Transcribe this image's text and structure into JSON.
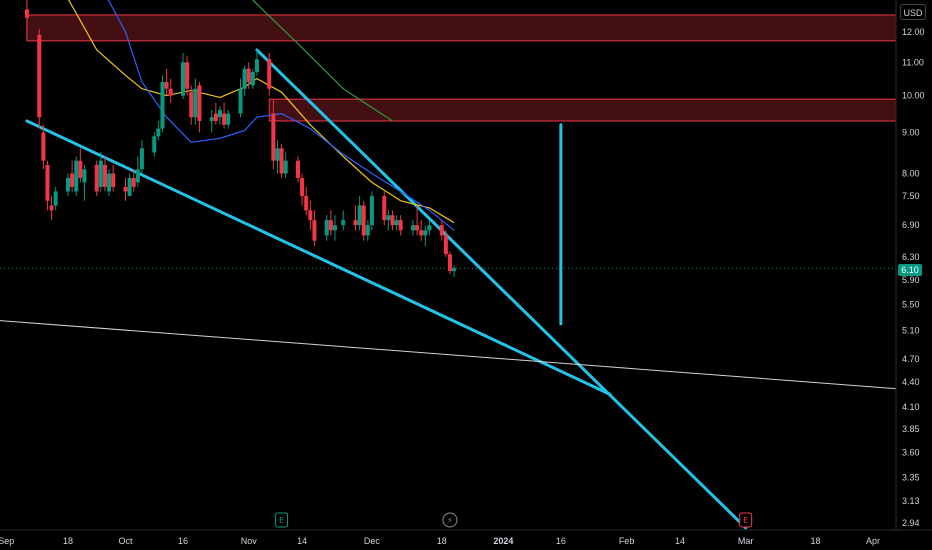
{
  "chart_data": {
    "type": "candlestick",
    "price_scale": {
      "currency": "USD",
      "ticks": [
        "12.00",
        "11.00",
        "10.00",
        "9.00",
        "8.00",
        "7.50",
        "6.90",
        "6.30",
        "5.90",
        "5.50",
        "5.10",
        "4.70",
        "4.40",
        "4.10",
        "3.85",
        "3.60",
        "3.35",
        "3.13",
        "2.94"
      ],
      "scale": "log",
      "last_price": "6.10"
    },
    "time_scale": {
      "labels": [
        "Sep",
        "18",
        "Oct",
        "16",
        "Nov",
        "14",
        "Dec",
        "18",
        "2024",
        "16",
        "Feb",
        "14",
        "Mar",
        "18",
        "Apr"
      ],
      "bold_labels": [
        "2024"
      ]
    },
    "candles": [
      {
        "d": "Sep 8",
        "o": 12.8,
        "h": 13.2,
        "l": 11.9,
        "c": 12.5
      },
      {
        "d": "Sep 11",
        "o": 11.9,
        "h": 12.1,
        "l": 9.1,
        "c": 9.4
      },
      {
        "d": "Sep 12",
        "o": 9.0,
        "h": 9.2,
        "l": 8.1,
        "c": 8.3
      },
      {
        "d": "Sep 13",
        "o": 8.2,
        "h": 8.3,
        "l": 7.2,
        "c": 7.4
      },
      {
        "d": "Sep 14",
        "o": 7.3,
        "h": 7.5,
        "l": 7.0,
        "c": 7.2
      },
      {
        "d": "Sep 15",
        "o": 7.3,
        "h": 7.7,
        "l": 7.2,
        "c": 7.6
      },
      {
        "d": "Sep 18",
        "o": 7.6,
        "h": 8.0,
        "l": 7.5,
        "c": 7.9
      },
      {
        "d": "Sep 19",
        "o": 8.0,
        "h": 8.3,
        "l": 7.6,
        "c": 7.7
      },
      {
        "d": "Sep 20",
        "o": 7.6,
        "h": 8.4,
        "l": 7.5,
        "c": 8.3
      },
      {
        "d": "Sep 21",
        "o": 8.3,
        "h": 8.6,
        "l": 7.8,
        "c": 7.9
      },
      {
        "d": "Sep 22",
        "o": 7.8,
        "h": 8.2,
        "l": 7.4,
        "c": 8.1
      },
      {
        "d": "Sep 25",
        "o": 8.2,
        "h": 8.3,
        "l": 7.5,
        "c": 7.6
      },
      {
        "d": "Sep 26",
        "o": 7.7,
        "h": 8.5,
        "l": 7.6,
        "c": 8.3
      },
      {
        "d": "Sep 27",
        "o": 8.2,
        "h": 8.4,
        "l": 7.6,
        "c": 7.7
      },
      {
        "d": "Sep 28",
        "o": 7.6,
        "h": 8.1,
        "l": 7.5,
        "c": 8.0
      },
      {
        "d": "Sep 29",
        "o": 8.0,
        "h": 8.2,
        "l": 7.6,
        "c": 7.7
      },
      {
        "d": "Oct 2",
        "o": 7.7,
        "h": 7.9,
        "l": 7.4,
        "c": 7.6
      },
      {
        "d": "Oct 3",
        "o": 7.5,
        "h": 8.0,
        "l": 7.5,
        "c": 7.9
      },
      {
        "d": "Oct 4",
        "o": 7.9,
        "h": 8.1,
        "l": 7.6,
        "c": 7.7
      },
      {
        "d": "Oct 5",
        "o": 7.8,
        "h": 8.4,
        "l": 7.7,
        "c": 8.1
      },
      {
        "d": "Oct 6",
        "o": 8.1,
        "h": 8.8,
        "l": 8.0,
        "c": 8.6
      },
      {
        "d": "Oct 9",
        "o": 8.5,
        "h": 9.0,
        "l": 8.4,
        "c": 8.9
      },
      {
        "d": "Oct 10",
        "o": 8.9,
        "h": 9.3,
        "l": 8.8,
        "c": 9.1
      },
      {
        "d": "Oct 11",
        "o": 9.1,
        "h": 10.6,
        "l": 9.0,
        "c": 10.4
      },
      {
        "d": "Oct 12",
        "o": 10.4,
        "h": 10.8,
        "l": 10.0,
        "c": 10.2
      },
      {
        "d": "Oct 13",
        "o": 10.2,
        "h": 10.5,
        "l": 9.8,
        "c": 10.0
      },
      {
        "d": "Oct 16",
        "o": 10.0,
        "h": 11.3,
        "l": 9.9,
        "c": 11.0
      },
      {
        "d": "Oct 17",
        "o": 11.0,
        "h": 11.2,
        "l": 10.0,
        "c": 10.2
      },
      {
        "d": "Oct 18",
        "o": 10.1,
        "h": 10.3,
        "l": 9.2,
        "c": 9.4
      },
      {
        "d": "Oct 19",
        "o": 9.4,
        "h": 10.5,
        "l": 9.2,
        "c": 10.2
      },
      {
        "d": "Oct 20",
        "o": 10.3,
        "h": 10.4,
        "l": 9.0,
        "c": 9.3
      },
      {
        "d": "Oct 23",
        "o": 9.3,
        "h": 9.6,
        "l": 9.0,
        "c": 9.4
      },
      {
        "d": "Oct 24",
        "o": 9.5,
        "h": 9.8,
        "l": 9.2,
        "c": 9.3
      },
      {
        "d": "Oct 25",
        "o": 9.4,
        "h": 9.7,
        "l": 9.2,
        "c": 9.6
      },
      {
        "d": "Oct 26",
        "o": 9.5,
        "h": 9.8,
        "l": 9.1,
        "c": 9.2
      },
      {
        "d": "Oct 27",
        "o": 9.2,
        "h": 9.6,
        "l": 9.1,
        "c": 9.5
      },
      {
        "d": "Oct 30",
        "o": 9.5,
        "h": 10.5,
        "l": 9.4,
        "c": 10.2
      },
      {
        "d": "Oct 31",
        "o": 10.2,
        "h": 10.9,
        "l": 10.0,
        "c": 10.8
      },
      {
        "d": "Nov 1",
        "o": 10.8,
        "h": 11.0,
        "l": 10.2,
        "c": 10.4
      },
      {
        "d": "Nov 2",
        "o": 10.3,
        "h": 10.8,
        "l": 10.2,
        "c": 10.7
      },
      {
        "d": "Nov 3",
        "o": 10.7,
        "h": 11.4,
        "l": 10.6,
        "c": 11.1
      },
      {
        "d": "Nov 6",
        "o": 11.1,
        "h": 11.3,
        "l": 10.0,
        "c": 10.2
      },
      {
        "d": "Nov 7",
        "o": 9.5,
        "h": 9.9,
        "l": 8.1,
        "c": 8.3
      },
      {
        "d": "Nov 8",
        "o": 8.3,
        "h": 8.8,
        "l": 8.0,
        "c": 8.6
      },
      {
        "d": "Nov 9",
        "o": 8.6,
        "h": 8.7,
        "l": 7.9,
        "c": 8.0
      },
      {
        "d": "Nov 10",
        "o": 8.0,
        "h": 8.5,
        "l": 7.9,
        "c": 8.3
      },
      {
        "d": "Nov 13",
        "o": 8.3,
        "h": 8.4,
        "l": 7.8,
        "c": 7.9
      },
      {
        "d": "Nov 14",
        "o": 7.9,
        "h": 8.0,
        "l": 7.3,
        "c": 7.5
      },
      {
        "d": "Nov 15",
        "o": 7.5,
        "h": 7.7,
        "l": 7.1,
        "c": 7.2
      },
      {
        "d": "Nov 16",
        "o": 7.2,
        "h": 7.4,
        "l": 6.8,
        "c": 7.0
      },
      {
        "d": "Nov 17",
        "o": 7.0,
        "h": 7.2,
        "l": 6.5,
        "c": 6.6
      },
      {
        "d": "Nov 20",
        "o": 6.7,
        "h": 7.1,
        "l": 6.6,
        "c": 7.0
      },
      {
        "d": "Nov 21",
        "o": 7.0,
        "h": 7.2,
        "l": 6.7,
        "c": 6.8
      },
      {
        "d": "Nov 22",
        "o": 6.8,
        "h": 7.1,
        "l": 6.6,
        "c": 6.9
      },
      {
        "d": "Nov 24",
        "o": 6.9,
        "h": 7.2,
        "l": 6.8,
        "c": 7.0
      },
      {
        "d": "Nov 27",
        "o": 7.0,
        "h": 7.3,
        "l": 6.8,
        "c": 6.9
      },
      {
        "d": "Nov 28",
        "o": 6.9,
        "h": 7.5,
        "l": 6.8,
        "c": 7.3
      },
      {
        "d": "Nov 29",
        "o": 7.3,
        "h": 7.4,
        "l": 6.6,
        "c": 6.7
      },
      {
        "d": "Nov 30",
        "o": 6.7,
        "h": 7.0,
        "l": 6.6,
        "c": 6.9
      },
      {
        "d": "Dec 1",
        "o": 6.9,
        "h": 7.6,
        "l": 6.8,
        "c": 7.5
      },
      {
        "d": "Dec 4",
        "o": 7.5,
        "h": 7.6,
        "l": 6.9,
        "c": 7.0
      },
      {
        "d": "Dec 5",
        "o": 7.0,
        "h": 7.2,
        "l": 6.8,
        "c": 7.1
      },
      {
        "d": "Dec 6",
        "o": 7.1,
        "h": 7.2,
        "l": 6.8,
        "c": 6.9
      },
      {
        "d": "Dec 7",
        "o": 6.9,
        "h": 7.1,
        "l": 6.8,
        "c": 7.0
      },
      {
        "d": "Dec 8",
        "o": 7.0,
        "h": 7.1,
        "l": 6.7,
        "c": 6.8
      },
      {
        "d": "Dec 11",
        "o": 6.8,
        "h": 7.0,
        "l": 6.7,
        "c": 6.9
      },
      {
        "d": "Dec 12",
        "o": 6.9,
        "h": 7.3,
        "l": 6.7,
        "c": 6.8
      },
      {
        "d": "Dec 13",
        "o": 6.8,
        "h": 7.0,
        "l": 6.6,
        "c": 6.7
      },
      {
        "d": "Dec 14",
        "o": 6.7,
        "h": 6.9,
        "l": 6.5,
        "c": 6.8
      },
      {
        "d": "Dec 15",
        "o": 6.8,
        "h": 7.0,
        "l": 6.7,
        "c": 6.9
      },
      {
        "d": "Dec 18",
        "o": 6.9,
        "h": 7.0,
        "l": 6.6,
        "c": 6.7
      },
      {
        "d": "Dec 19",
        "o": 6.7,
        "h": 6.8,
        "l": 6.3,
        "c": 6.35
      },
      {
        "d": "Dec 20",
        "o": 6.35,
        "h": 6.4,
        "l": 6.0,
        "c": 6.05
      },
      {
        "d": "Dec 21",
        "o": 6.05,
        "h": 6.15,
        "l": 5.95,
        "c": 6.1
      }
    ],
    "moving_averages": [
      {
        "color": "#f0c419",
        "points": [
          [
            "Sep 18",
            13.2
          ],
          [
            "Sep 25",
            11.4
          ],
          [
            "Oct 2",
            10.6
          ],
          [
            "Oct 6",
            10.2
          ],
          [
            "Oct 12",
            10.0
          ],
          [
            "Oct 18",
            10.15
          ],
          [
            "Oct 25",
            9.95
          ],
          [
            "Oct 31",
            10.25
          ],
          [
            "Nov 3",
            10.5
          ],
          [
            "Nov 9",
            10.1
          ],
          [
            "Nov 16",
            9.2
          ],
          [
            "Nov 24",
            8.4
          ],
          [
            "Dec 1",
            7.8
          ],
          [
            "Dec 8",
            7.4
          ],
          [
            "Dec 15",
            7.25
          ],
          [
            "Dec 21",
            6.95
          ]
        ]
      },
      {
        "color": "#2962ff",
        "points": [
          [
            "Sep 25",
            14.0
          ],
          [
            "Oct 2",
            12.0
          ],
          [
            "Oct 6",
            10.4
          ],
          [
            "Oct 12",
            9.4
          ],
          [
            "Oct 18",
            8.75
          ],
          [
            "Oct 25",
            8.85
          ],
          [
            "Oct 31",
            9.05
          ],
          [
            "Nov 3",
            9.4
          ],
          [
            "Nov 9",
            9.5
          ],
          [
            "Nov 16",
            9.1
          ],
          [
            "Nov 24",
            8.45
          ],
          [
            "Dec 1",
            8.0
          ],
          [
            "Dec 8",
            7.6
          ],
          [
            "Dec 15",
            7.2
          ],
          [
            "Dec 21",
            6.8
          ]
        ]
      },
      {
        "color": "#2e9a3a",
        "points": [
          [
            "Oct 25",
            14.5
          ],
          [
            "Nov 3",
            13.0
          ],
          [
            "Nov 13",
            11.6
          ],
          [
            "Nov 24",
            10.2
          ],
          [
            "Dec 6",
            9.3
          ]
        ]
      }
    ],
    "drawings": {
      "zones": [
        {
          "color": "#f23645",
          "from": "Sep 8",
          "to": "Apr 18",
          "top": 12.6,
          "bottom": 11.7
        },
        {
          "color": "#f23645",
          "from": "Nov 6",
          "to": "Apr 18",
          "top": 9.9,
          "bottom": 9.3
        }
      ],
      "trend_lines": [
        {
          "color": "#22c3e6",
          "start": [
            "Sep 8",
            9.3
          ],
          "end": [
            "Jan 28",
            4.25
          ]
        },
        {
          "color": "#22c3e6",
          "start": [
            "Nov 3",
            11.4
          ],
          "end": [
            "Mar 1",
            2.9
          ]
        },
        {
          "color": "#22c3e6",
          "start": [
            "Jan 16",
            9.2
          ],
          "end": [
            "Jan 16",
            5.2
          ]
        },
        {
          "color": "#d1d4dc",
          "start": [
            "Aug 31",
            5.25
          ],
          "end": [
            "Apr 25",
            4.32
          ]
        }
      ],
      "horizontal_line_at": 6.1
    },
    "event_markers": [
      {
        "symbol": "E",
        "date": "Nov 9",
        "color": "#089981"
      },
      {
        "symbol": "⚡",
        "date": "Dec 20",
        "color": "#8a8f98"
      },
      {
        "symbol": "E",
        "date": "Mar 1",
        "color": "#f23645"
      }
    ]
  }
}
